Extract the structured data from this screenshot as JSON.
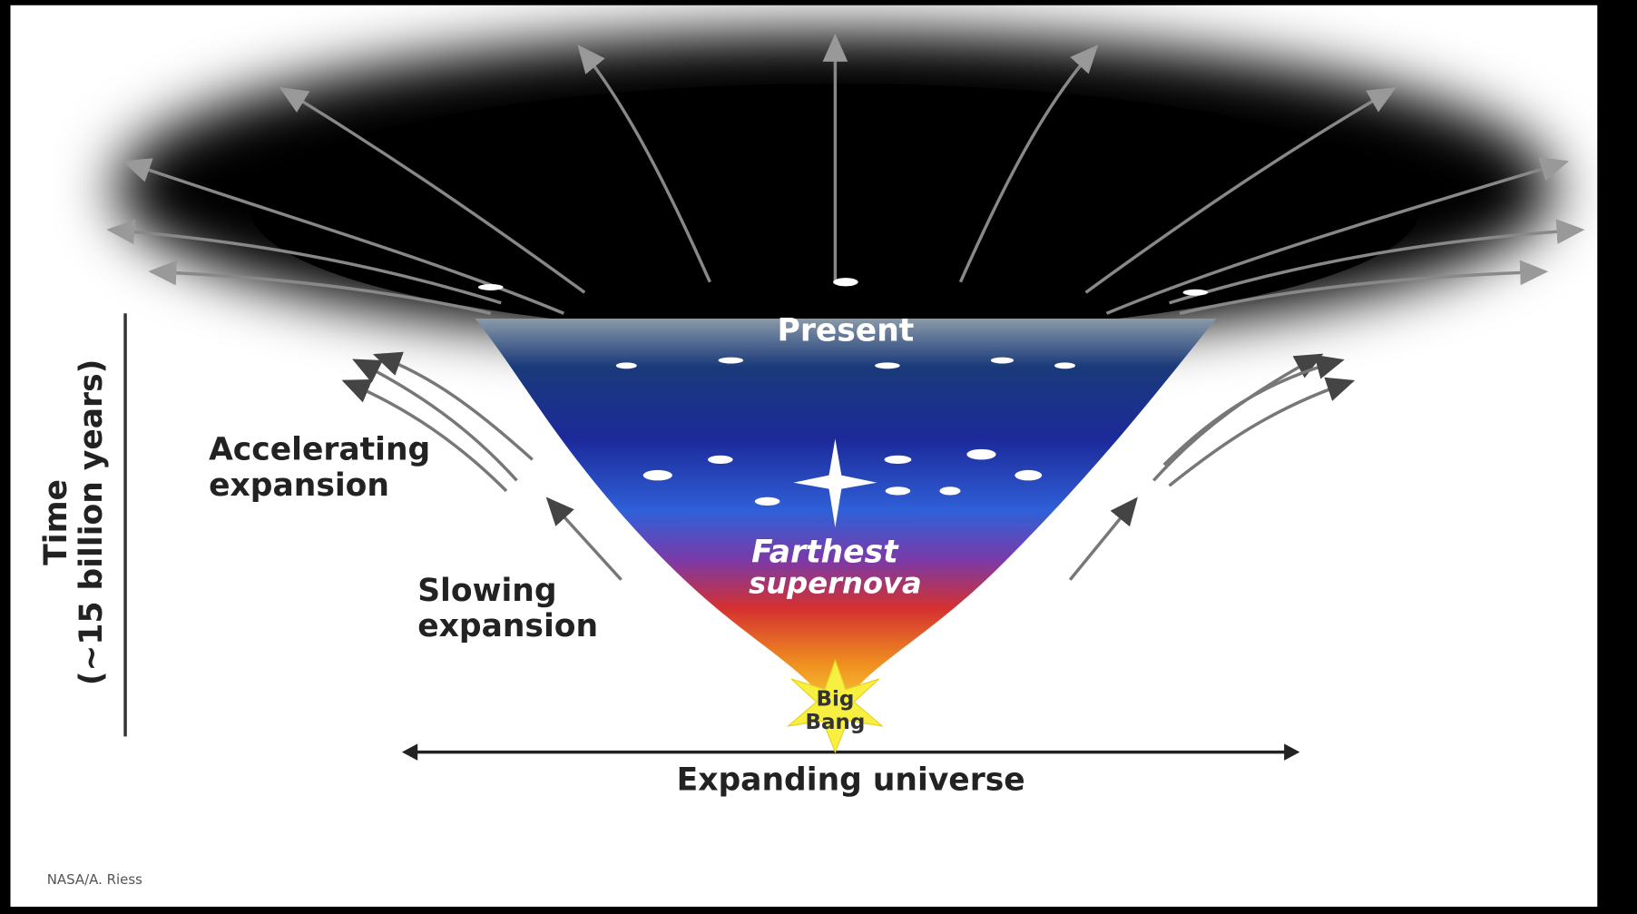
{
  "diagram": {
    "present": "Present",
    "accelerating": [
      "Accelerating",
      "expansion"
    ],
    "slowing": [
      "Slowing",
      "expansion"
    ],
    "supernova": [
      "Farthest",
      "supernova"
    ],
    "big_bang": [
      "Big",
      "Bang"
    ],
    "x_axis": "Expanding universe",
    "y_axis": [
      "Time",
      "(~15 billion years)"
    ],
    "credit": "NASA/A. Riess"
  }
}
